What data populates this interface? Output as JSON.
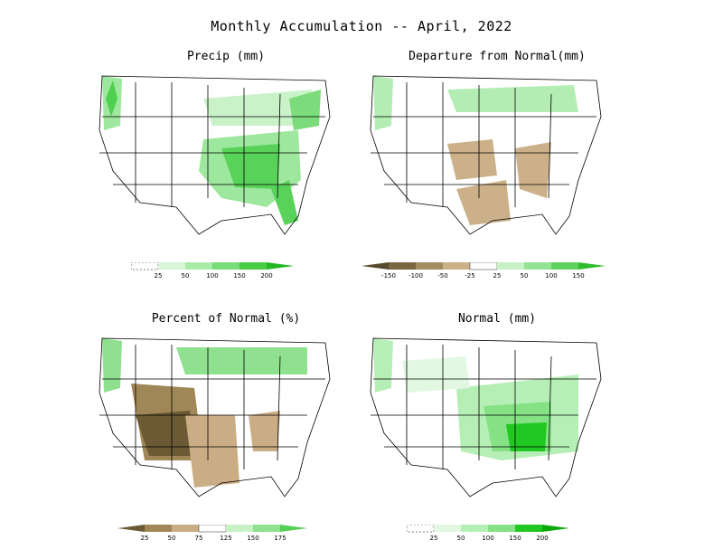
{
  "title": "Monthly Accumulation -- April, 2022",
  "panels": [
    {
      "id": "precip",
      "title": "Precip (mm)",
      "colorbar": {
        "labels": [
          "25",
          "50",
          "100",
          "150",
          "200"
        ],
        "colors": [
          "#ffffff",
          "#d8f5d8",
          "#a8eca8",
          "#78dd78",
          "#48cc48",
          "#22b822"
        ],
        "has_trace_lead": true
      }
    },
    {
      "id": "departure",
      "title": "Departure from Normal(mm)",
      "colorbar": {
        "labels": [
          "-150",
          "-100",
          "-50",
          "-25",
          "25",
          "50",
          "100",
          "150"
        ],
        "colors": [
          "#574a2c",
          "#7a6541",
          "#a48c62",
          "#ccb08a",
          "#ffffff",
          "#c6f2c6",
          "#94e394",
          "#5ed25e",
          "#2fbd2f"
        ]
      }
    },
    {
      "id": "percent",
      "title": "Percent of Normal (%)",
      "colorbar": {
        "labels": [
          "25",
          "50",
          "75",
          "125",
          "150",
          "175"
        ],
        "colors": [
          "#6b5a34",
          "#a08757",
          "#cbad85",
          "#ffffff",
          "#c6f2c6",
          "#8fe08f",
          "#55cf55"
        ]
      }
    },
    {
      "id": "normal",
      "title": "Normal (mm)",
      "colorbar": {
        "labels": [
          "25",
          "50",
          "100",
          "150",
          "200"
        ],
        "colors": [
          "#ffffff",
          "#e2f8e2",
          "#b6efb6",
          "#84e184",
          "#22c822",
          "#0aa80a"
        ],
        "has_trace_lead": true
      }
    }
  ]
}
